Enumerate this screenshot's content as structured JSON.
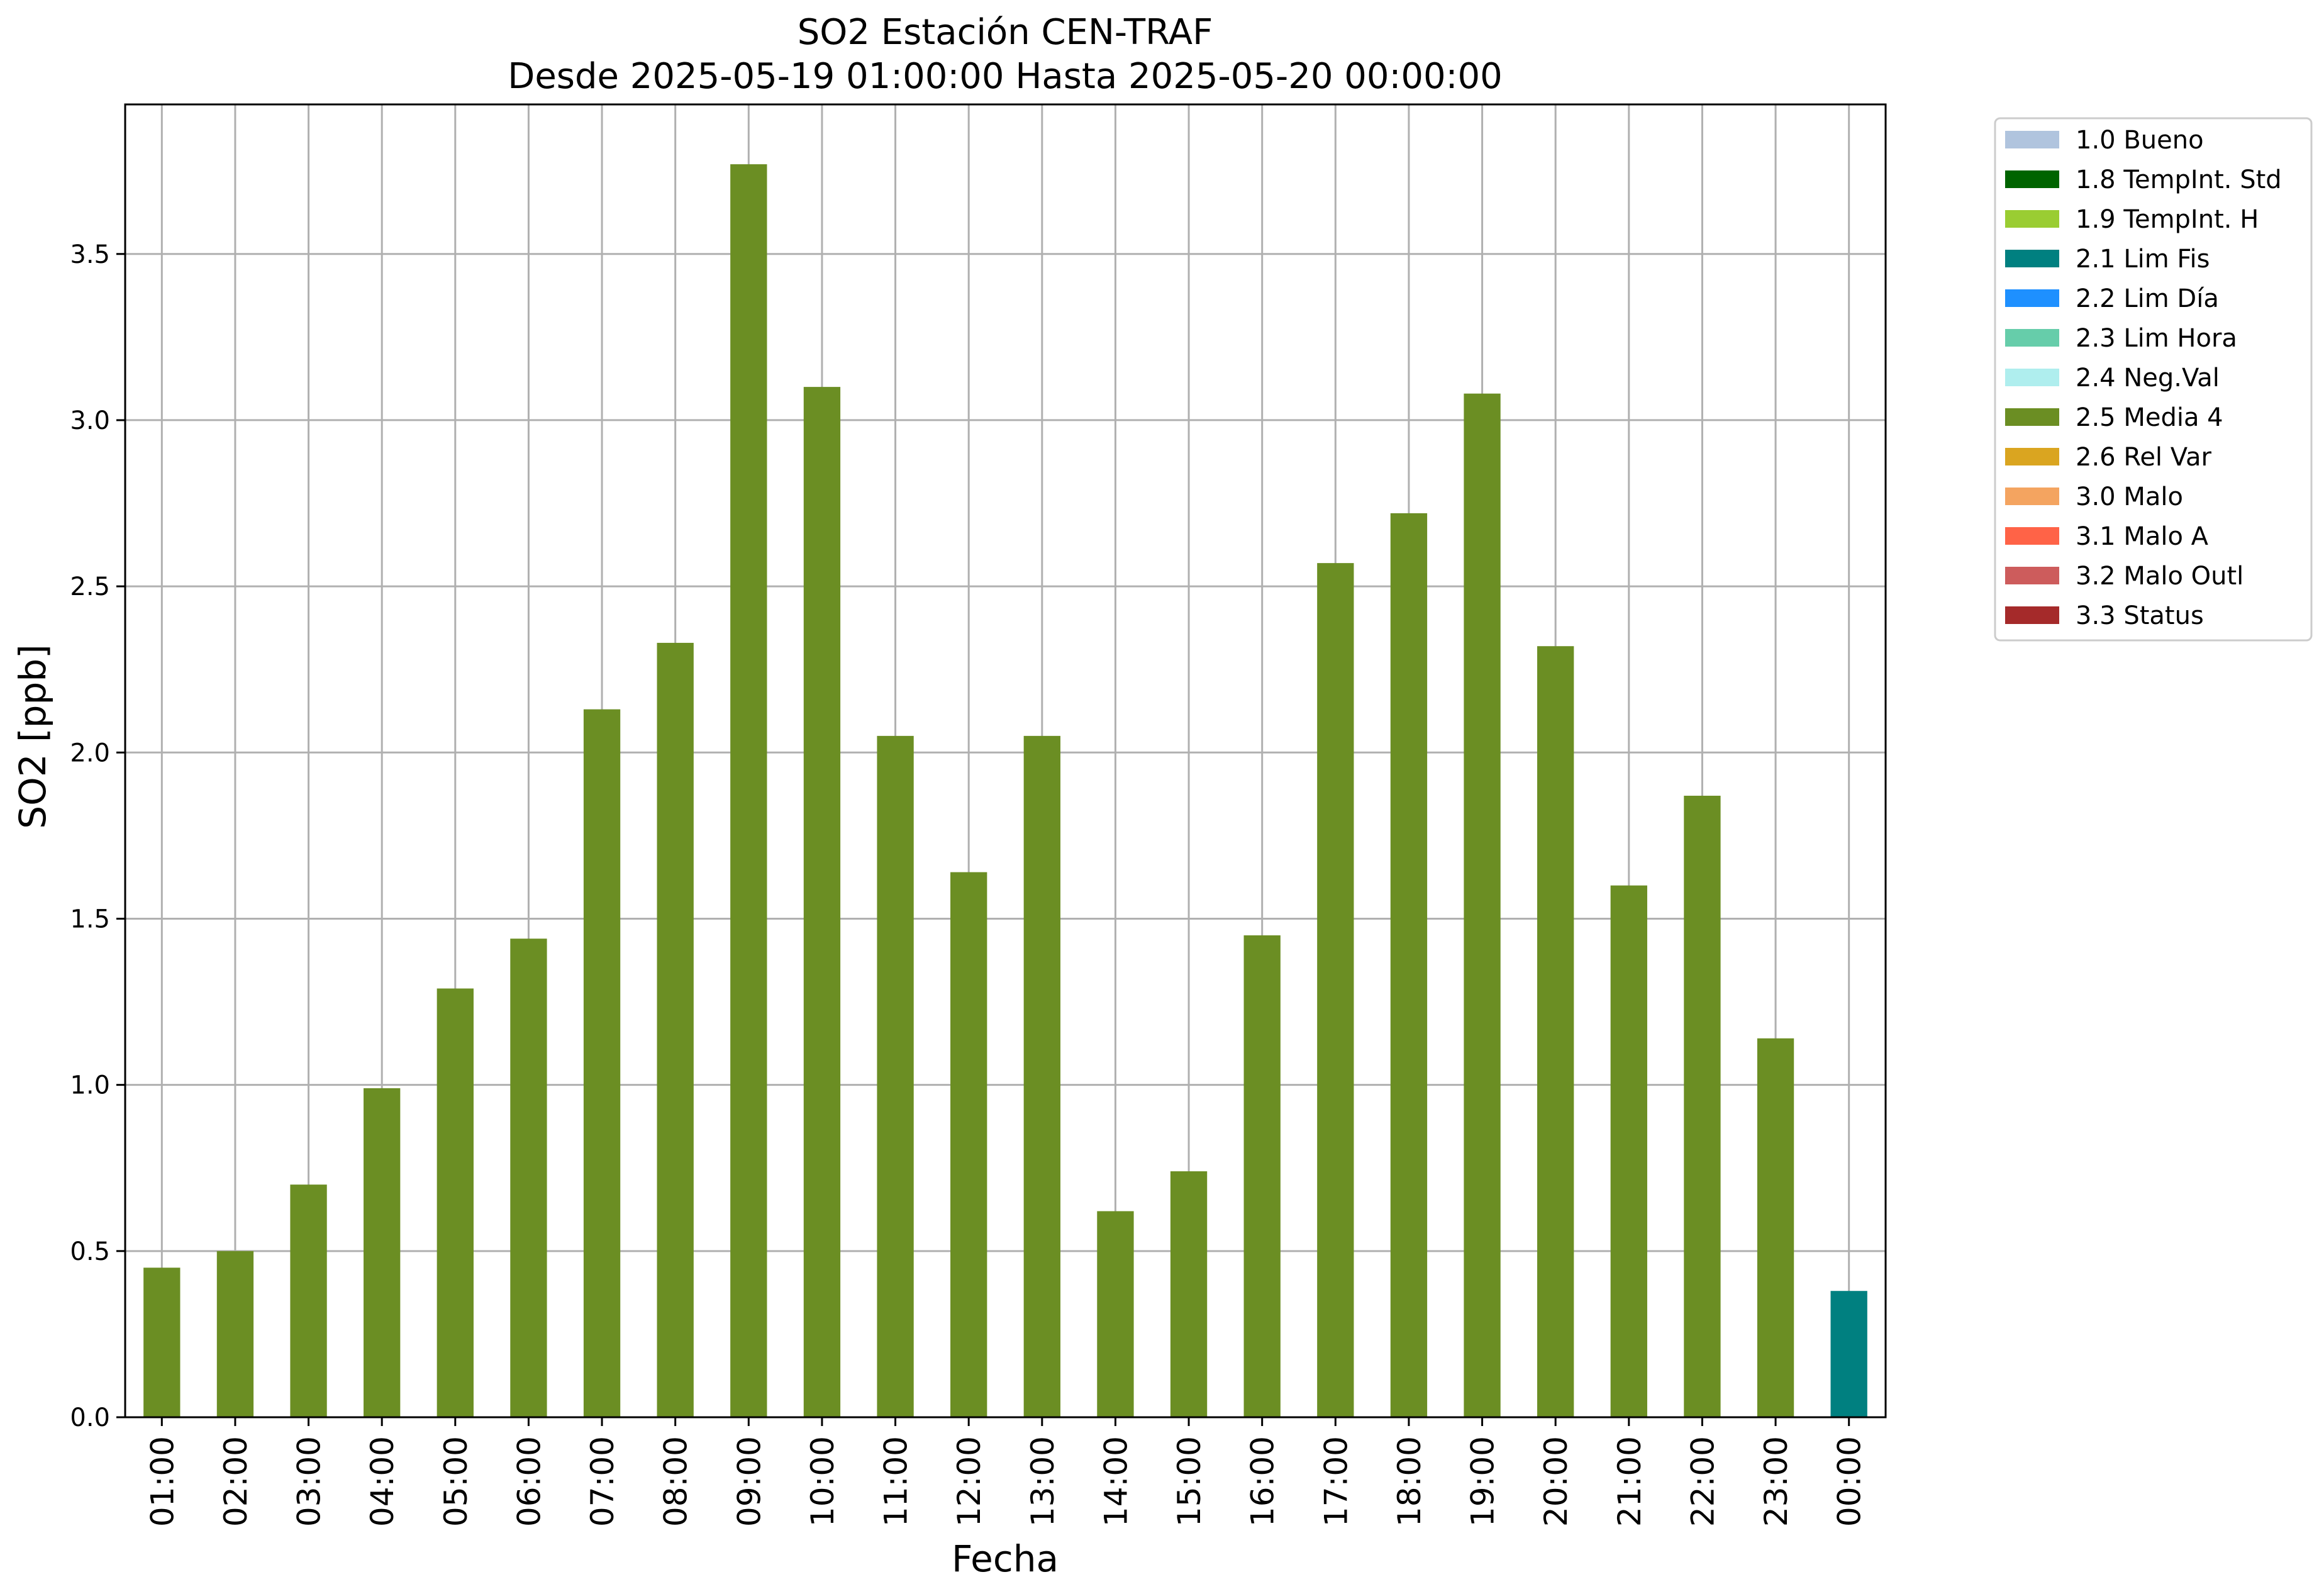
{
  "chart_data": {
    "type": "bar",
    "title": "SO2 Estación CEN-TRAF",
    "subtitle": "Desde 2025-05-19 01:00:00 Hasta 2025-05-20 00:00:00",
    "xlabel": "Fecha",
    "ylabel": "SO2 [ppb]",
    "ylim": [
      0,
      3.95
    ],
    "yticks": [
      "0.0",
      "0.5",
      "1.0",
      "1.5",
      "2.0",
      "2.5",
      "3.0",
      "3.5"
    ],
    "grid": true,
    "legend_position": "outside top-right",
    "categories": [
      "01:00",
      "02:00",
      "03:00",
      "04:00",
      "05:00",
      "06:00",
      "07:00",
      "08:00",
      "09:00",
      "10:00",
      "11:00",
      "12:00",
      "13:00",
      "14:00",
      "15:00",
      "16:00",
      "17:00",
      "18:00",
      "19:00",
      "20:00",
      "21:00",
      "22:00",
      "23:00",
      "00:00"
    ],
    "values": [
      0.45,
      0.5,
      0.7,
      0.99,
      1.29,
      1.44,
      2.13,
      2.33,
      3.77,
      3.1,
      2.05,
      1.64,
      2.05,
      0.62,
      0.74,
      1.45,
      2.57,
      2.72,
      3.08,
      2.32,
      1.6,
      1.87,
      1.14,
      0.38
    ],
    "bar_flags": [
      "2.5 Media 4",
      "2.5 Media 4",
      "2.5 Media 4",
      "2.5 Media 4",
      "2.5 Media 4",
      "2.5 Media 4",
      "2.5 Media 4",
      "2.5 Media 4",
      "2.5 Media 4",
      "2.5 Media 4",
      "2.5 Media 4",
      "2.5 Media 4",
      "2.5 Media 4",
      "2.5 Media 4",
      "2.5 Media 4",
      "2.5 Media 4",
      "2.5 Media 4",
      "2.5 Media 4",
      "2.5 Media 4",
      "2.5 Media 4",
      "2.5 Media 4",
      "2.5 Media 4",
      "2.5 Media 4",
      "2.1 Lim Fis"
    ],
    "legend": [
      {
        "label": "1.0 Bueno",
        "color": "#b0c4de"
      },
      {
        "label": "1.8 TempInt. Std",
        "color": "#006400"
      },
      {
        "label": "1.9 TempInt. H",
        "color": "#9acd32"
      },
      {
        "label": "2.1 Lim Fis",
        "color": "#008080"
      },
      {
        "label": "2.2 Lim Día",
        "color": "#1e90ff"
      },
      {
        "label": "2.3 Lim Hora",
        "color": "#66cdaa"
      },
      {
        "label": "2.4 Neg.Val",
        "color": "#afeeee"
      },
      {
        "label": "2.5 Media 4",
        "color": "#6b8e23"
      },
      {
        "label": "2.6 Rel Var",
        "color": "#daa520"
      },
      {
        "label": "3.0 Malo",
        "color": "#f4a460"
      },
      {
        "label": "3.1 Malo A",
        "color": "#ff6347"
      },
      {
        "label": "3.2 Malo Outl",
        "color": "#cd5c5c"
      },
      {
        "label": "3.3 Status",
        "color": "#a52a2a"
      }
    ]
  }
}
